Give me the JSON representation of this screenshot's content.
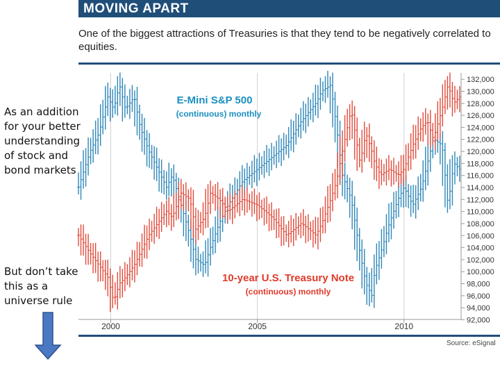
{
  "header": {
    "title": "MOVING APART"
  },
  "subtitle": "One of the biggest attractions of Treasuries is that they tend to be negatively correlated to equities.",
  "side_notes": {
    "note1": [
      "As an addition",
      "for your better",
      "understanding",
      "of stock and",
      "bond markets"
    ],
    "note2": [
      "But don’t take",
      "this as a",
      "universe rule"
    ]
  },
  "source": "Source: eSignal",
  "colors": {
    "equity": "#2e86b8",
    "treasury": "#e04a3a",
    "header": "#1f4e79",
    "arrow": "#4a78c2"
  },
  "chart_data": {
    "type": "line",
    "title": "MOVING APART",
    "y_axis": {
      "ticks": [
        "132,000",
        "130,000",
        "128,000",
        "126,000",
        "124,000",
        "122,000",
        "120,000",
        "118,000",
        "116,000",
        "114,000",
        "112,000",
        "110,000",
        "108,000",
        "106,000",
        "104,000",
        "102,000",
        "100,000",
        "98,000",
        "96,000",
        "94,000",
        "92,000"
      ],
      "range": [
        92000,
        133000
      ],
      "position": "right"
    },
    "x_axis": {
      "ticks": [
        "2000",
        "2005",
        "2010"
      ],
      "range": [
        1998.9,
        2011.9
      ]
    },
    "x": [
      1998.9,
      1999.3,
      1999.6,
      1999.9,
      2000.1,
      2000.3,
      2000.5,
      2000.8,
      2001.0,
      2001.3,
      2001.6,
      2001.9,
      2002.1,
      2002.4,
      2002.7,
      2002.9,
      2003.2,
      2003.4,
      2003.7,
      2004.0,
      2004.5,
      2005.0,
      2005.5,
      2006.0,
      2006.5,
      2007.0,
      2007.2,
      2007.5,
      2007.7,
      2007.9,
      2008.2,
      2008.5,
      2008.7,
      2008.9,
      2009.0,
      2009.2,
      2009.5,
      2009.8,
      2010.0,
      2010.3,
      2010.6,
      2010.8,
      2011.0,
      2011.3,
      2011.5,
      2011.7,
      2011.9
    ],
    "series": [
      {
        "name": "E-Mini S&P 500",
        "subtitle": "(continuous) monthly",
        "label_color": "#1a8fbf",
        "values": [
          114000,
          120000,
          123000,
          129000,
          127000,
          131000,
          127000,
          129000,
          124000,
          120000,
          117000,
          114000,
          116000,
          111000,
          106000,
          102000,
          101000,
          104000,
          108000,
          111000,
          115000,
          117000,
          119000,
          121000,
          125000,
          128000,
          130000,
          131000,
          124000,
          116000,
          112000,
          103000,
          98000,
          96000,
          100000,
          103000,
          108000,
          112000,
          114000,
          111000,
          114000,
          118000,
          122000,
          121000,
          111000,
          118000,
          117000
        ]
      },
      {
        "name": "10-year U.S. Treasury Note",
        "subtitle": "(continuous) monthly",
        "label_color": "#e03a2a",
        "values": [
          106000,
          103000,
          101000,
          99000,
          95000,
          98000,
          99000,
          101000,
          103000,
          106000,
          108000,
          110000,
          109000,
          113000,
          112000,
          107000,
          109000,
          113000,
          112000,
          110000,
          112000,
          111000,
          109000,
          106000,
          108000,
          106000,
          108000,
          112000,
          115000,
          120000,
          127000,
          118000,
          123000,
          120000,
          118000,
          116000,
          117000,
          116000,
          117000,
          121000,
          124000,
          125000,
          122000,
          127000,
          131000,
          128000,
          129000
        ]
      }
    ]
  }
}
